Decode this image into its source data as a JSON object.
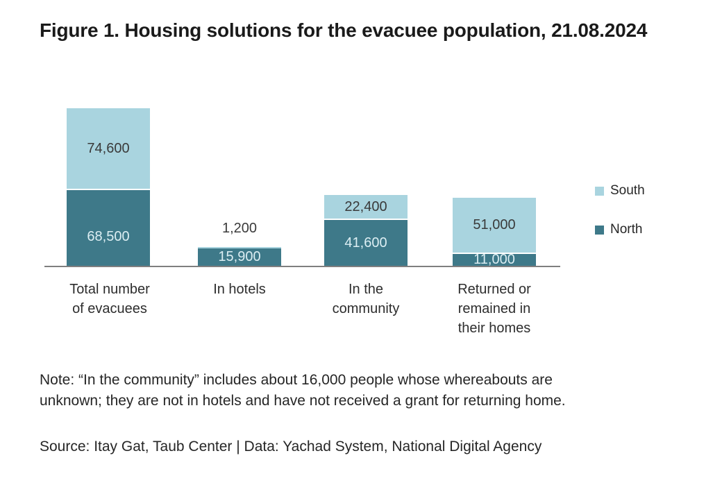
{
  "figure": {
    "title": "Figure 1. Housing solutions for the evacuee population, 21.08.2024"
  },
  "chart_data": {
    "type": "bar",
    "stacked": true,
    "orientation": "vertical",
    "categories": [
      "Total number of evacuees",
      "In hotels",
      "In the community",
      "Returned or remained in their homes"
    ],
    "series": [
      {
        "name": "North",
        "color": "#3E7989",
        "values": [
          68500,
          15900,
          41600,
          11000
        ],
        "labels": [
          "68,500",
          "15,900",
          "41,600",
          "11,000"
        ]
      },
      {
        "name": "South",
        "color": "#A9D4DF",
        "values": [
          74600,
          1200,
          22400,
          51000
        ],
        "labels": [
          "74,600",
          "1,200",
          "22,400",
          "51,000"
        ]
      }
    ],
    "stack_order_bottom_to_top": [
      "North",
      "South"
    ],
    "legend": {
      "position": "right",
      "entries": [
        "South",
        "North"
      ]
    },
    "axes": {
      "y_axis_visible": false,
      "x_baseline_visible": true,
      "gridlines": false
    },
    "colors": {
      "north": "#3E7989",
      "south": "#A9D4DF",
      "label_on_dark": "#DCEEF3",
      "label_on_light": "#3A3A3A",
      "axis_line": "#7F7F7F",
      "background": "#FFFFFF"
    }
  },
  "note": "Note: “In the community” includes about 16,000 people whose whereabouts are unknown; they are not in hotels and have not received a grant for returning home.",
  "source": "Source: Itay Gat, Taub Center | Data: Yachad System, National Digital Agency"
}
